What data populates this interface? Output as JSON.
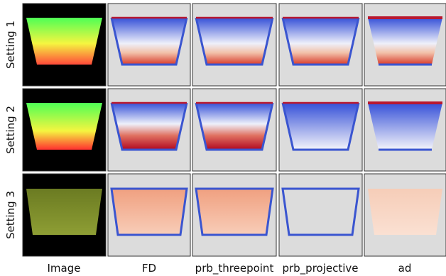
{
  "row_labels": [
    "Setting 1",
    "Setting 2",
    "Setting 3"
  ],
  "column_labels": [
    "Image",
    "FD",
    "prb_threepoint",
    "prb_projective",
    "ad"
  ]
}
